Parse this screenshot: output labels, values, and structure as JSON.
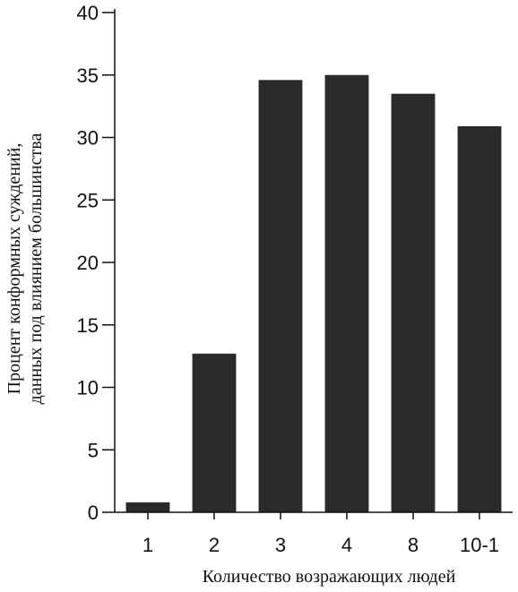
{
  "chart_data": {
    "type": "bar",
    "categories": [
      "1",
      "2",
      "3",
      "4",
      "8",
      "10-1"
    ],
    "values": [
      0.8,
      12.7,
      34.6,
      35.0,
      33.5,
      30.9
    ],
    "xlabel": "Количество возражающих людей",
    "ylabel_lines": [
      "Процент конформных суждений,",
      "данных под влиянием большинства"
    ],
    "ylim": [
      0,
      40
    ],
    "yticks": [
      0,
      5,
      10,
      15,
      20,
      25,
      30,
      35,
      40
    ],
    "grid": false,
    "bar_color": "#2a2a2a"
  }
}
